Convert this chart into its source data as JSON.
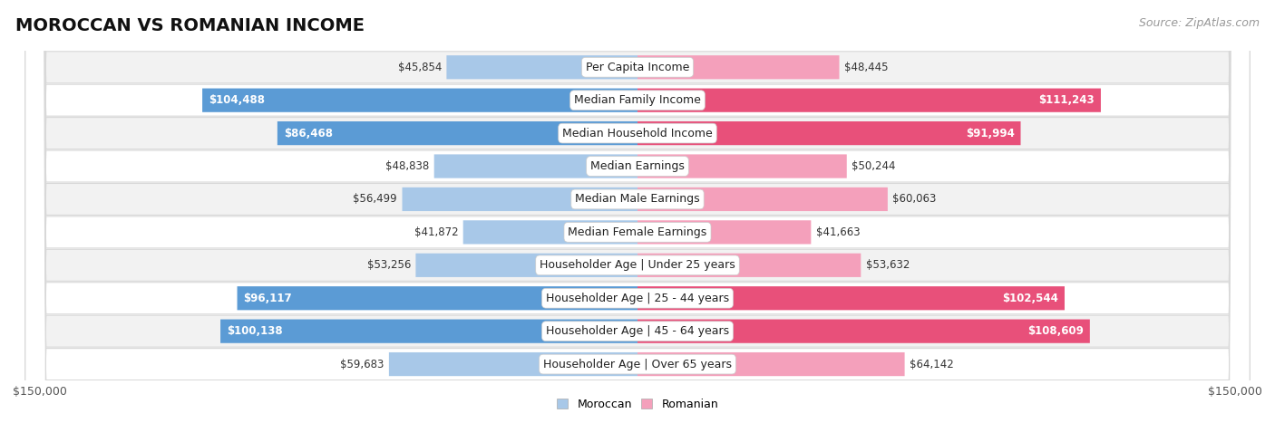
{
  "title": "MOROCCAN VS ROMANIAN INCOME",
  "source": "Source: ZipAtlas.com",
  "categories": [
    "Per Capita Income",
    "Median Family Income",
    "Median Household Income",
    "Median Earnings",
    "Median Male Earnings",
    "Median Female Earnings",
    "Householder Age | Under 25 years",
    "Householder Age | 25 - 44 years",
    "Householder Age | 45 - 64 years",
    "Householder Age | Over 65 years"
  ],
  "moroccan_values": [
    45854,
    104488,
    86468,
    48838,
    56499,
    41872,
    53256,
    96117,
    100138,
    59683
  ],
  "romanian_values": [
    48445,
    111243,
    91994,
    50244,
    60063,
    41663,
    53632,
    102544,
    108609,
    64142
  ],
  "moroccan_labels": [
    "$45,854",
    "$104,488",
    "$86,468",
    "$48,838",
    "$56,499",
    "$41,872",
    "$53,256",
    "$96,117",
    "$100,138",
    "$59,683"
  ],
  "romanian_labels": [
    "$48,445",
    "$111,243",
    "$91,994",
    "$50,244",
    "$60,063",
    "$41,663",
    "$53,632",
    "$102,544",
    "$108,609",
    "$64,142"
  ],
  "max_value": 150000,
  "moroccan_color_light": "#a8c8e8",
  "moroccan_color_dark": "#5b9bd5",
  "romanian_color_light": "#f4a0bb",
  "romanian_color_dark": "#e8507a",
  "row_bg_odd": "#f2f2f2",
  "row_bg_even": "#ffffff",
  "label_threshold": 75000,
  "background_color": "#ffffff",
  "title_fontsize": 14,
  "source_fontsize": 9,
  "category_fontsize": 9,
  "value_fontsize": 8.5,
  "legend_fontsize": 9,
  "axis_label_fontsize": 9
}
